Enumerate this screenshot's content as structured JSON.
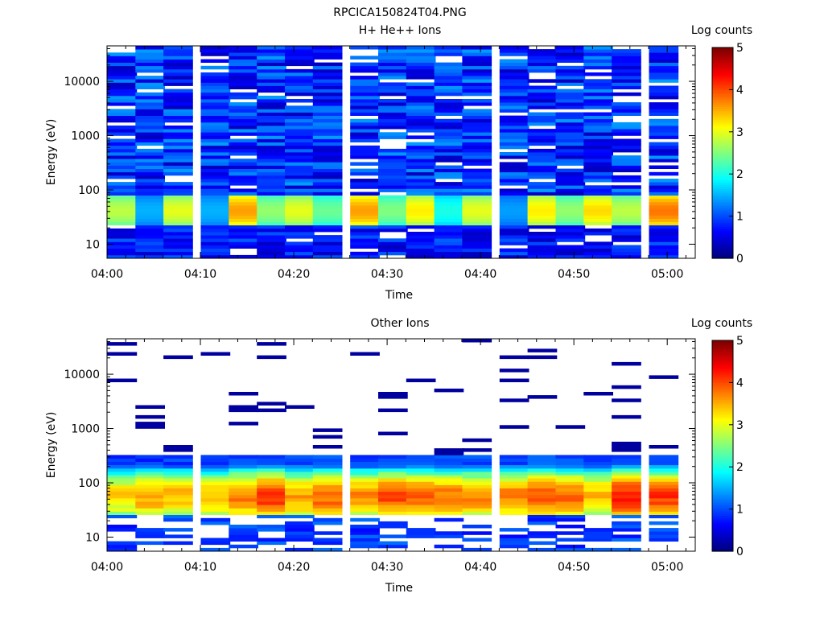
{
  "figure_title": "RPCICA150824T04.PNG",
  "chart_data": [
    {
      "type": "heatmap",
      "title": "H+ He++ Ions",
      "xlabel": "Time",
      "ylabel": "Energy (eV)",
      "x_ticks": [
        "04:00",
        "04:10",
        "04:20",
        "04:30",
        "04:40",
        "04:50",
        "05:00"
      ],
      "y_ticks": [
        "10",
        "100",
        "1000",
        "10000"
      ],
      "y_scale": "log",
      "ylim": [
        5.5,
        45000
      ],
      "x_range": [
        "04:00",
        "05:03"
      ],
      "colorbar": {
        "label": "Log counts",
        "ticks": [
          "0",
          "1",
          "2",
          "3",
          "4",
          "5"
        ],
        "range": [
          0,
          5
        ]
      },
      "time_bins": [
        "04:00",
        "04:03",
        "04:06",
        "04:10",
        "04:13",
        "04:16",
        "04:19",
        "04:22",
        "04:26",
        "04:29",
        "04:32",
        "04:35",
        "04:38",
        "04:42",
        "04:45",
        "04:48",
        "04:51",
        "04:54",
        "04:58"
      ],
      "profile": "plasma_low",
      "peak_log_counts": [
        2.8,
        1.5,
        3.0,
        1.5,
        3.6,
        2.6,
        3.0,
        2.4,
        3.6,
        2.5,
        3.2,
        2.0,
        3.0,
        1.4,
        3.2,
        2.6,
        3.3,
        2.8,
        3.8
      ]
    },
    {
      "type": "heatmap",
      "title": "Other Ions",
      "xlabel": "Time",
      "ylabel": "Energy (eV)",
      "x_ticks": [
        "04:00",
        "04:10",
        "04:20",
        "04:30",
        "04:40",
        "04:50",
        "05:00"
      ],
      "y_ticks": [
        "10",
        "100",
        "1000",
        "10000"
      ],
      "y_scale": "log",
      "ylim": [
        5.5,
        45000
      ],
      "x_range": [
        "04:00",
        "05:03"
      ],
      "colorbar": {
        "label": "Log counts",
        "ticks": [
          "0",
          "1",
          "2",
          "3",
          "4",
          "5"
        ],
        "range": [
          0,
          5
        ]
      },
      "time_bins": [
        "04:00",
        "04:03",
        "04:06",
        "04:10",
        "04:13",
        "04:16",
        "04:19",
        "04:22",
        "04:26",
        "04:29",
        "04:32",
        "04:35",
        "04:38",
        "04:42",
        "04:45",
        "04:48",
        "04:51",
        "04:54",
        "04:58"
      ],
      "profile": "plasma_wide",
      "peak_log_counts": [
        3.3,
        3.6,
        3.5,
        3.4,
        3.8,
        4.2,
        3.6,
        3.9,
        3.7,
        4.0,
        3.9,
        3.8,
        3.7,
        3.8,
        4.0,
        3.9,
        3.5,
        4.3,
        4.1
      ]
    }
  ]
}
